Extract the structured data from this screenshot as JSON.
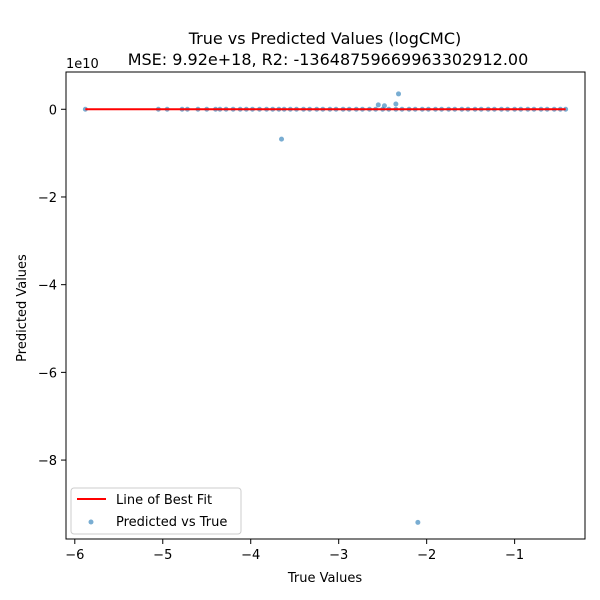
{
  "chart_data": {
    "type": "scatter",
    "title": "True vs Predicted Values (logCMC)",
    "subtitle": "MSE: 9.92e+18, R2: -13648759669963302912.00",
    "xlabel": "True Values",
    "ylabel": "Predicted Values",
    "y_offset_label": "1e10",
    "xlim": [
      -6.1,
      -0.2
    ],
    "ylim": [
      -9.8,
      0.85
    ],
    "x_ticks": [
      -6,
      -5,
      -4,
      -3,
      -2,
      -1
    ],
    "y_ticks": [
      0,
      -2,
      -4,
      -6,
      -8
    ],
    "x_tick_labels": [
      "−6",
      "−5",
      "−4",
      "−3",
      "−2",
      "−1"
    ],
    "y_tick_labels": [
      "0",
      "−2",
      "−4",
      "−6",
      "−8"
    ],
    "legend_position": "lower-left",
    "grid": false,
    "series": [
      {
        "name": "Predicted vs True",
        "kind": "scatter",
        "color": "#1f77b4",
        "points": [
          [
            -5.88,
            0.0
          ],
          [
            -5.05,
            0.0
          ],
          [
            -4.95,
            0.0
          ],
          [
            -4.78,
            0.0
          ],
          [
            -4.72,
            0.0
          ],
          [
            -4.6,
            0.0
          ],
          [
            -4.5,
            0.0
          ],
          [
            -4.4,
            0.0
          ],
          [
            -4.35,
            0.0
          ],
          [
            -4.28,
            0.0
          ],
          [
            -4.2,
            0.0
          ],
          [
            -4.12,
            0.0
          ],
          [
            -4.05,
            0.0
          ],
          [
            -3.98,
            0.0
          ],
          [
            -3.9,
            0.0
          ],
          [
            -3.82,
            0.0
          ],
          [
            -3.75,
            0.0
          ],
          [
            -3.68,
            0.0
          ],
          [
            -3.62,
            0.0
          ],
          [
            -3.55,
            0.0
          ],
          [
            -3.48,
            0.0
          ],
          [
            -3.4,
            0.0
          ],
          [
            -3.33,
            0.0
          ],
          [
            -3.25,
            0.0
          ],
          [
            -3.18,
            0.0
          ],
          [
            -3.1,
            0.0
          ],
          [
            -3.03,
            0.0
          ],
          [
            -2.95,
            0.0
          ],
          [
            -2.88,
            0.0
          ],
          [
            -2.8,
            0.0
          ],
          [
            -2.73,
            0.0
          ],
          [
            -2.65,
            0.0
          ],
          [
            -2.58,
            0.0
          ],
          [
            -2.5,
            0.0
          ],
          [
            -2.43,
            0.0
          ],
          [
            -2.35,
            0.0
          ],
          [
            -2.28,
            0.0
          ],
          [
            -2.2,
            0.0
          ],
          [
            -2.13,
            0.0
          ],
          [
            -2.05,
            0.0
          ],
          [
            -1.98,
            0.0
          ],
          [
            -1.9,
            0.0
          ],
          [
            -1.83,
            0.0
          ],
          [
            -1.75,
            0.0
          ],
          [
            -1.68,
            0.0
          ],
          [
            -1.6,
            0.0
          ],
          [
            -1.53,
            0.0
          ],
          [
            -1.45,
            0.0
          ],
          [
            -1.38,
            0.0
          ],
          [
            -1.3,
            0.0
          ],
          [
            -1.23,
            0.0
          ],
          [
            -1.15,
            0.0
          ],
          [
            -1.08,
            0.0
          ],
          [
            -1.0,
            0.0
          ],
          [
            -0.93,
            0.0
          ],
          [
            -0.85,
            0.0
          ],
          [
            -0.78,
            0.0
          ],
          [
            -0.7,
            0.0
          ],
          [
            -0.63,
            0.0
          ],
          [
            -0.55,
            0.0
          ],
          [
            -0.48,
            0.0
          ],
          [
            -0.42,
            0.0
          ],
          [
            -2.32,
            0.35
          ],
          [
            -2.55,
            0.1
          ],
          [
            -2.48,
            0.08
          ],
          [
            -2.35,
            0.12
          ],
          [
            -3.65,
            -0.68
          ],
          [
            -2.1,
            -9.42
          ]
        ]
      },
      {
        "name": "Line of Best Fit",
        "kind": "line",
        "color": "#ff0000",
        "points": [
          [
            -5.88,
            0.0
          ],
          [
            -0.42,
            0.0
          ]
        ]
      }
    ]
  }
}
